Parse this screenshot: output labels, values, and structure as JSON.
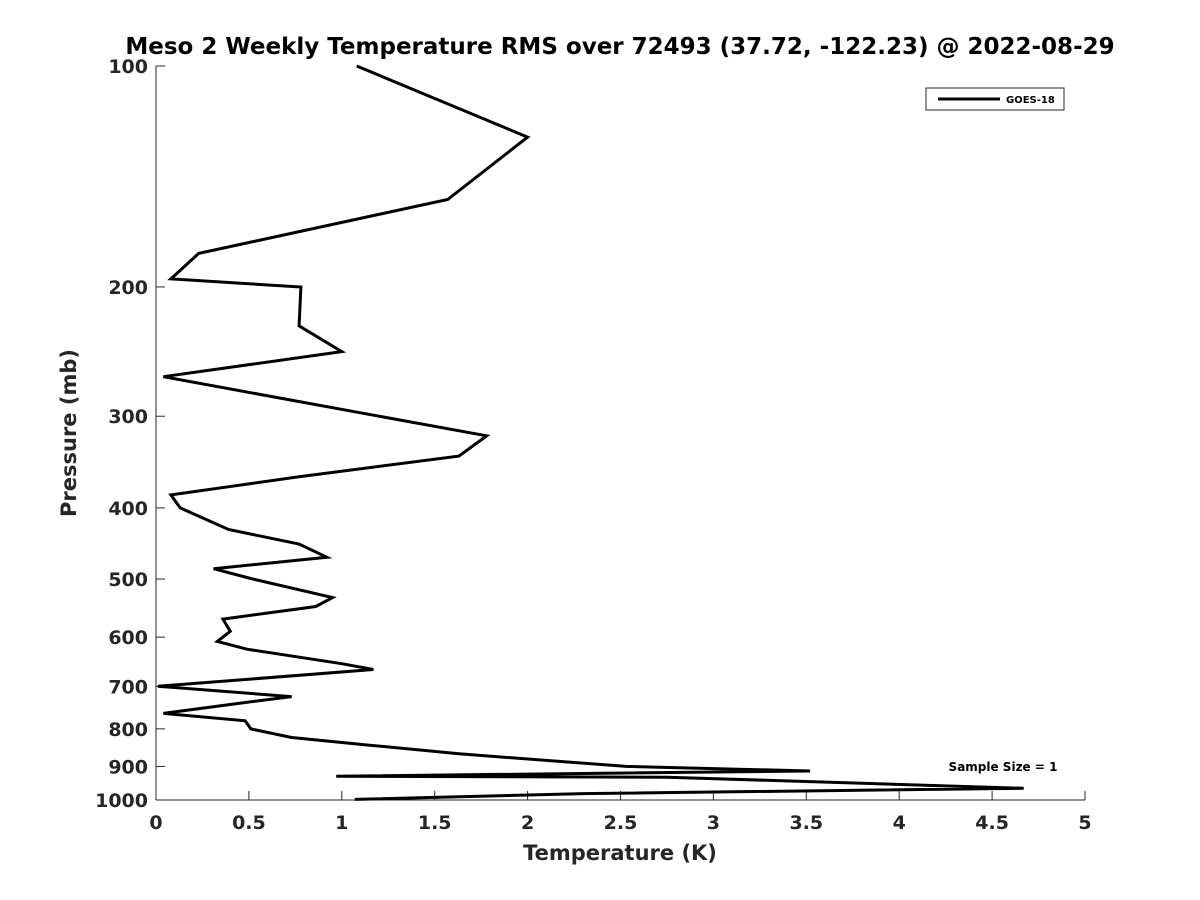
{
  "chart_data": {
    "type": "line",
    "title": "Meso 2 Weekly Temperature RMS over 72493 (37.72, -122.23) @ 2022-08-29",
    "xlabel": "Temperature (K)",
    "ylabel": "Pressure (mb)",
    "xlim": [
      0,
      5
    ],
    "ylim": [
      100,
      1000
    ],
    "yscale": "log",
    "y_reversed": true,
    "grid": false,
    "legend_position": "top-right",
    "x_ticks": [
      0,
      0.5,
      1,
      1.5,
      2,
      2.5,
      3,
      3.5,
      4,
      4.5,
      5
    ],
    "x_tick_labels": [
      "0",
      "0.5",
      "1",
      "1.5",
      "2",
      "2.5",
      "3",
      "3.5",
      "4",
      "4.5",
      "5"
    ],
    "y_ticks": [
      100,
      200,
      300,
      400,
      500,
      600,
      700,
      800,
      900,
      1000
    ],
    "y_tick_labels": [
      "100",
      "200",
      "300",
      "400",
      "500",
      "600",
      "700",
      "800",
      "900",
      "1000"
    ],
    "annotation": "Sample Size = 1",
    "series": [
      {
        "name": "GOES-18",
        "color": "#000000",
        "points": [
          [
            1.08,
            100
          ],
          [
            2.0,
            125
          ],
          [
            1.57,
            152
          ],
          [
            0.23,
            180
          ],
          [
            0.08,
            195
          ],
          [
            0.78,
            200
          ],
          [
            0.77,
            226
          ],
          [
            1.0,
            245
          ],
          [
            0.04,
            265
          ],
          [
            1.2,
            300
          ],
          [
            1.78,
            319
          ],
          [
            1.63,
            340
          ],
          [
            0.76,
            363
          ],
          [
            0.08,
            384
          ],
          [
            0.13,
            400
          ],
          [
            0.39,
            428
          ],
          [
            0.77,
            448
          ],
          [
            0.92,
            467
          ],
          [
            0.31,
            484
          ],
          [
            0.52,
            500
          ],
          [
            0.95,
            530
          ],
          [
            0.86,
            545
          ],
          [
            0.36,
            567
          ],
          [
            0.4,
            589
          ],
          [
            0.33,
            608
          ],
          [
            0.49,
            623
          ],
          [
            1.0,
            652
          ],
          [
            1.17,
            664
          ],
          [
            0.01,
            700
          ],
          [
            0.73,
            723
          ],
          [
            0.45,
            738
          ],
          [
            0.04,
            762
          ],
          [
            0.48,
            780
          ],
          [
            0.51,
            800
          ],
          [
            0.73,
            822
          ],
          [
            1.15,
            842
          ],
          [
            1.63,
            865
          ],
          [
            2.53,
            900
          ],
          [
            3.52,
            913
          ],
          [
            0.97,
            928
          ],
          [
            2.75,
            931
          ],
          [
            4.67,
            964
          ],
          [
            2.3,
            980
          ],
          [
            1.07,
            998
          ]
        ]
      }
    ]
  }
}
